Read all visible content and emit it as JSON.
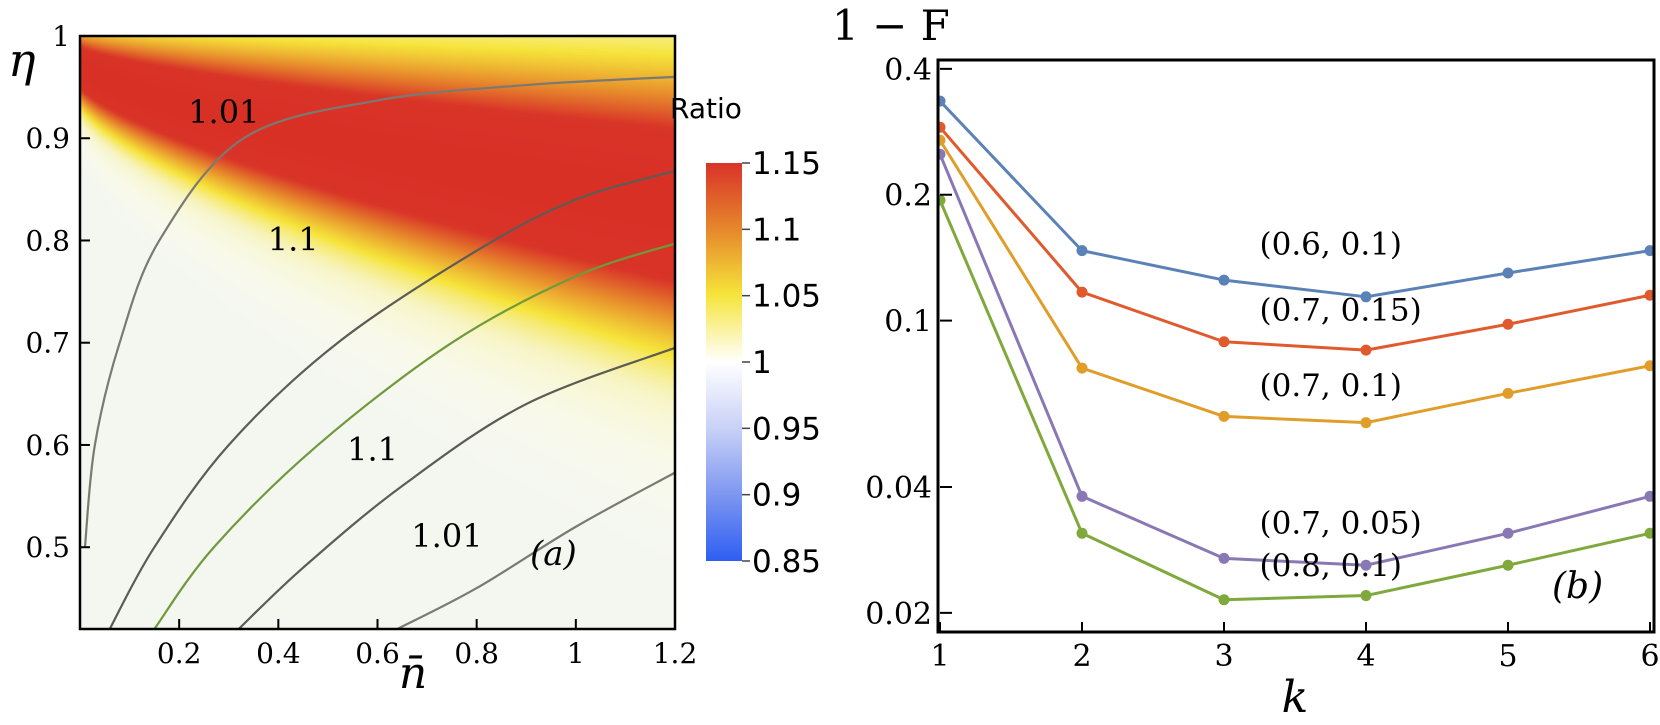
{
  "chart_data": [
    {
      "type": "heatmap",
      "panel_label": "(a)",
      "xlabel": "n̄",
      "ylabel": "η",
      "xlim": [
        0.0,
        1.2
      ],
      "ylim": [
        0.42,
        1.0
      ],
      "x_ticks": [
        0.2,
        0.4,
        0.6,
        0.8,
        1,
        1.2
      ],
      "x_tick_labels": [
        "0.2",
        "0.4",
        "0.6",
        "0.8",
        "1",
        "1.2"
      ],
      "y_ticks": [
        0.5,
        0.6,
        0.7,
        0.8,
        0.9,
        1
      ],
      "y_tick_labels": [
        "0.5",
        "0.6",
        "0.7",
        "0.8",
        "0.9",
        "1"
      ],
      "colorbar": {
        "title": "Ratio",
        "range": [
          0.85,
          1.15
        ],
        "ticks": [
          1.15,
          1.1,
          1.05,
          1,
          0.95,
          0.9,
          0.85
        ],
        "tick_labels": [
          "1.15",
          "1.1",
          "1.05",
          "1",
          "0.95",
          "0.9",
          "0.85"
        ]
      },
      "contours": [
        {
          "level": "1.01",
          "color": "#7a7a72",
          "points": [
            [
              0.01,
              0.5
            ],
            [
              0.03,
              0.6
            ],
            [
              0.08,
              0.7
            ],
            [
              0.16,
              0.8
            ],
            [
              0.33,
              0.9
            ],
            [
              0.6,
              0.937
            ],
            [
              0.9,
              0.952
            ],
            [
              1.2,
              0.96
            ]
          ]
        },
        {
          "level": "",
          "color": "#5c5c54",
          "points": [
            [
              0.06,
              0.42
            ],
            [
              0.15,
              0.5
            ],
            [
              0.3,
              0.6
            ],
            [
              0.52,
              0.7
            ],
            [
              0.8,
              0.79
            ],
            [
              1.0,
              0.84
            ],
            [
              1.2,
              0.868
            ]
          ]
        },
        {
          "level": "",
          "color": "#6f9a3b",
          "points": [
            [
              0.15,
              0.42
            ],
            [
              0.27,
              0.5
            ],
            [
              0.48,
              0.6
            ],
            [
              0.75,
              0.7
            ],
            [
              1.0,
              0.765
            ],
            [
              1.2,
              0.797
            ]
          ]
        },
        {
          "level": "",
          "color": "#5c5c54",
          "points": [
            [
              0.32,
              0.42
            ],
            [
              0.45,
              0.48
            ],
            [
              0.65,
              0.56
            ],
            [
              0.9,
              0.64
            ],
            [
              1.2,
              0.695
            ]
          ]
        },
        {
          "level": "",
          "color": "#7a7a72",
          "points": [
            [
              0.64,
              0.42
            ],
            [
              0.8,
              0.46
            ],
            [
              1.0,
              0.52
            ],
            [
              1.2,
              0.573
            ]
          ]
        }
      ],
      "annotations": [
        {
          "text": "1.01",
          "x": 0.29,
          "y": 0.915
        },
        {
          "text": "1.1",
          "x": 0.43,
          "y": 0.79
        },
        {
          "text": "1.1",
          "x": 0.59,
          "y": 0.585
        },
        {
          "text": "1.01",
          "x": 0.74,
          "y": 0.5
        }
      ]
    },
    {
      "type": "line",
      "panel_label": "(b)",
      "title": "1 − F",
      "xlabel": "k",
      "ylabel": "1 − F",
      "yscale": "log",
      "xlim": [
        1,
        6
      ],
      "ylim": [
        0.018,
        0.42
      ],
      "x": [
        1,
        2,
        3,
        4,
        5,
        6
      ],
      "x_tick_labels": [
        "1",
        "2",
        "3",
        "4",
        "5",
        "6"
      ],
      "y_ticks": [
        0.4,
        0.2,
        0.1,
        0.04,
        0.02
      ],
      "y_tick_labels": [
        "0.4",
        "0.2",
        "0.1",
        "0.04",
        "0.02"
      ],
      "series": [
        {
          "name": "(0.6, 0.1)",
          "color": "#5b82b6",
          "values": [
            0.335,
            0.147,
            0.125,
            0.114,
            0.13,
            0.147
          ],
          "label_x": 3.25,
          "label_y": 0.144
        },
        {
          "name": "(0.7, 0.15)",
          "color": "#e05a2d",
          "values": [
            0.29,
            0.117,
            0.089,
            0.085,
            0.098,
            0.115
          ],
          "label_x": 3.25,
          "label_y": 0.1
        },
        {
          "name": "(0.7, 0.1)",
          "color": "#e19d2a",
          "values": [
            0.27,
            0.077,
            0.059,
            0.057,
            0.067,
            0.078
          ],
          "label_x": 3.25,
          "label_y": 0.066
        },
        {
          "name": "(0.7, 0.05)",
          "color": "#8a78b4",
          "values": [
            0.25,
            0.038,
            0.027,
            0.026,
            0.031,
            0.038
          ],
          "label_x": 3.25,
          "label_y": 0.031
        },
        {
          "name": "(0.8, 0.1)",
          "color": "#7fa93c",
          "values": [
            0.194,
            0.031,
            0.0215,
            0.022,
            0.026,
            0.031
          ],
          "label_x": 3.25,
          "label_y": 0.0245
        }
      ]
    }
  ]
}
